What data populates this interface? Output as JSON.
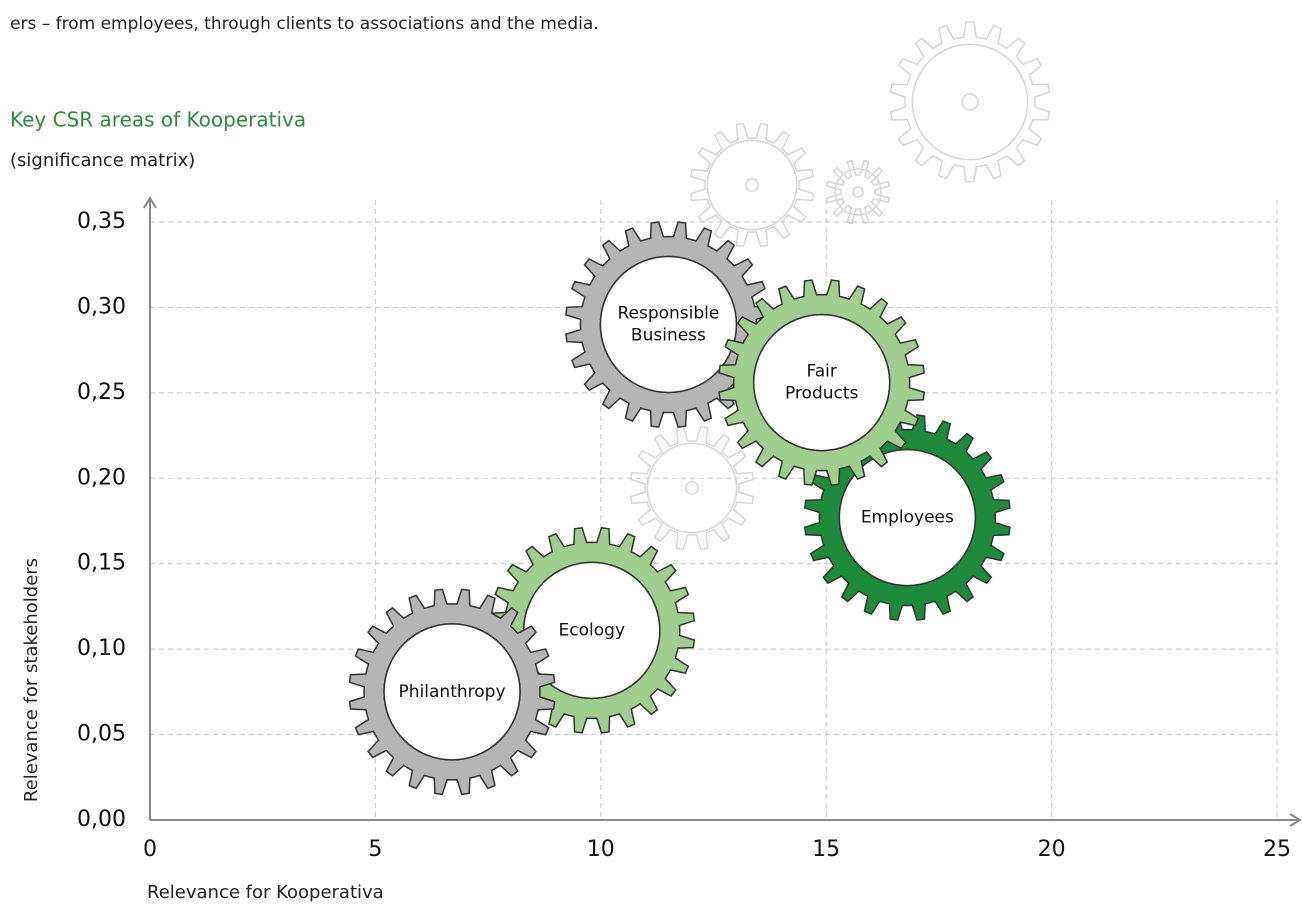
{
  "intro_text": "ers – from employees, through clients to associations and the media.",
  "chart_data": {
    "type": "scatter",
    "title": "Key CSR areas of Kooperativa",
    "subtitle": "(significance matrix)",
    "x_label": "Relevance for Kooperativa",
    "y_label": "Relevance for stakeholders",
    "labels": [
      "Philanthropy",
      "Ecology",
      "Responsible Business",
      "Fair Products",
      "Employees"
    ],
    "x": [
      6.7,
      9.8,
      11.5,
      14.9,
      16.8
    ],
    "values": [
      0.075,
      0.111,
      0.29,
      0.256,
      0.177
    ],
    "colors": [
      "#b5b5b5",
      "#9fce8f",
      "#b5b5b5",
      "#9fce8f",
      "#1e8a3c"
    ],
    "xlim": [
      0,
      25
    ],
    "ylim": [
      0,
      0.35
    ],
    "xticks": [
      0,
      5,
      10,
      15,
      20,
      25
    ],
    "yticks": [
      {
        "value": 0,
        "label": "0,00"
      },
      {
        "value": 0.05,
        "label": "0,05"
      },
      {
        "value": 0.1,
        "label": "0,10"
      },
      {
        "value": 0.15,
        "label": "0,15"
      },
      {
        "value": 0.2,
        "label": "0,20"
      },
      {
        "value": 0.25,
        "label": "0,25"
      },
      {
        "value": 0.3,
        "label": "0,30"
      },
      {
        "value": 0.35,
        "label": "0,35"
      }
    ],
    "grid": true
  }
}
